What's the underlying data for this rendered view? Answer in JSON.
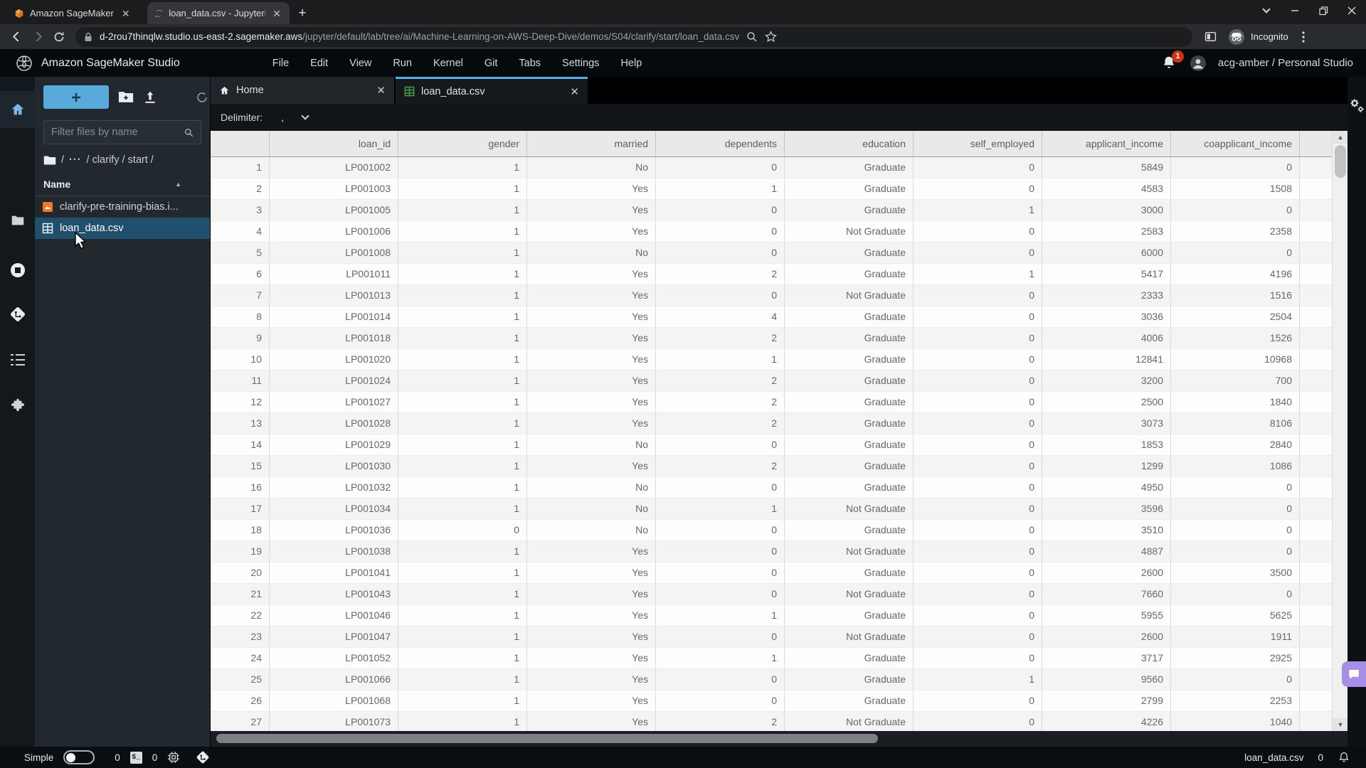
{
  "browser": {
    "tabs": [
      {
        "title": "Amazon SageMaker",
        "icon": "aws-cube-icon"
      },
      {
        "title": "loan_data.csv - JupyterLab",
        "icon": "jupyter-icon"
      }
    ],
    "url_domain": "d-2rou7thinqlw.studio.us-east-2.sagemaker.aws",
    "url_path": "/jupyter/default/lab/tree/ai/Machine-Learning-on-AWS-Deep-Dive/demos/S04/clarify/start/loan_data.csv",
    "incognito_label": "Incognito"
  },
  "studio_header": {
    "title": "Amazon SageMaker Studio",
    "menus": [
      "File",
      "Edit",
      "View",
      "Run",
      "Kernel",
      "Git",
      "Tabs",
      "Settings",
      "Help"
    ],
    "notification_count": "1",
    "user_label": "acg-amber / Personal Studio"
  },
  "file_browser": {
    "filter_placeholder": "Filter files by name",
    "breadcrumb_root": "/",
    "breadcrumb_ellipsis": "···",
    "breadcrumb_rest": "/ clarify / start /",
    "name_header": "Name",
    "files": [
      {
        "name": "clarify-pre-training-bias.i...",
        "type": "notebook",
        "selected": false
      },
      {
        "name": "loan_data.csv",
        "type": "csv",
        "selected": true
      }
    ]
  },
  "main": {
    "tabs": [
      {
        "label": "Home",
        "active": false
      },
      {
        "label": "loan_data.csv",
        "active": true
      }
    ],
    "delimiter_label": "Delimiter:",
    "delimiter_value": ","
  },
  "table": {
    "columns": [
      "loan_id",
      "gender",
      "married",
      "dependents",
      "education",
      "self_employed",
      "applicant_income",
      "coapplicant_income"
    ],
    "partial_last_row": true,
    "rows": [
      [
        "1",
        "LP001002",
        "1",
        "No",
        "0",
        "Graduate",
        "0",
        "5849",
        "0"
      ],
      [
        "2",
        "LP001003",
        "1",
        "Yes",
        "1",
        "Graduate",
        "0",
        "4583",
        "1508"
      ],
      [
        "3",
        "LP001005",
        "1",
        "Yes",
        "0",
        "Graduate",
        "1",
        "3000",
        "0"
      ],
      [
        "4",
        "LP001006",
        "1",
        "Yes",
        "0",
        "Not Graduate",
        "0",
        "2583",
        "2358"
      ],
      [
        "5",
        "LP001008",
        "1",
        "No",
        "0",
        "Graduate",
        "0",
        "6000",
        "0"
      ],
      [
        "6",
        "LP001011",
        "1",
        "Yes",
        "2",
        "Graduate",
        "1",
        "5417",
        "4196"
      ],
      [
        "7",
        "LP001013",
        "1",
        "Yes",
        "0",
        "Not Graduate",
        "0",
        "2333",
        "1516"
      ],
      [
        "8",
        "LP001014",
        "1",
        "Yes",
        "4",
        "Graduate",
        "0",
        "3036",
        "2504"
      ],
      [
        "9",
        "LP001018",
        "1",
        "Yes",
        "2",
        "Graduate",
        "0",
        "4006",
        "1526"
      ],
      [
        "10",
        "LP001020",
        "1",
        "Yes",
        "1",
        "Graduate",
        "0",
        "12841",
        "10968"
      ],
      [
        "11",
        "LP001024",
        "1",
        "Yes",
        "2",
        "Graduate",
        "0",
        "3200",
        "700"
      ],
      [
        "12",
        "LP001027",
        "1",
        "Yes",
        "2",
        "Graduate",
        "0",
        "2500",
        "1840"
      ],
      [
        "13",
        "LP001028",
        "1",
        "Yes",
        "2",
        "Graduate",
        "0",
        "3073",
        "8106"
      ],
      [
        "14",
        "LP001029",
        "1",
        "No",
        "0",
        "Graduate",
        "0",
        "1853",
        "2840"
      ],
      [
        "15",
        "LP001030",
        "1",
        "Yes",
        "2",
        "Graduate",
        "0",
        "1299",
        "1086"
      ],
      [
        "16",
        "LP001032",
        "1",
        "No",
        "0",
        "Graduate",
        "0",
        "4950",
        "0"
      ],
      [
        "17",
        "LP001034",
        "1",
        "No",
        "1",
        "Not Graduate",
        "0",
        "3596",
        "0"
      ],
      [
        "18",
        "LP001036",
        "0",
        "No",
        "0",
        "Graduate",
        "0",
        "3510",
        "0"
      ],
      [
        "19",
        "LP001038",
        "1",
        "Yes",
        "0",
        "Not Graduate",
        "0",
        "4887",
        "0"
      ],
      [
        "20",
        "LP001041",
        "1",
        "Yes",
        "0",
        "Graduate",
        "0",
        "2600",
        "3500"
      ],
      [
        "21",
        "LP001043",
        "1",
        "Yes",
        "0",
        "Not Graduate",
        "0",
        "7660",
        "0"
      ],
      [
        "22",
        "LP001046",
        "1",
        "Yes",
        "1",
        "Graduate",
        "0",
        "5955",
        "5625"
      ],
      [
        "23",
        "LP001047",
        "1",
        "Yes",
        "0",
        "Not Graduate",
        "0",
        "2600",
        "1911"
      ],
      [
        "24",
        "LP001052",
        "1",
        "Yes",
        "1",
        "Graduate",
        "0",
        "3717",
        "2925"
      ],
      [
        "25",
        "LP001066",
        "1",
        "Yes",
        "0",
        "Graduate",
        "1",
        "9560",
        "0"
      ],
      [
        "26",
        "LP001068",
        "1",
        "Yes",
        "0",
        "Graduate",
        "0",
        "2799",
        "2253"
      ],
      [
        "27",
        "LP001073",
        "1",
        "Yes",
        "2",
        "Not Graduate",
        "0",
        "4226",
        "1040"
      ]
    ]
  },
  "status_bar": {
    "mode_label": "Simple",
    "terminal_count": "0",
    "kernel_count": "0",
    "right_file": "loan_data.csv",
    "right_count": "0"
  },
  "icons": {
    "colors": {
      "accent_blue": "#4fb1e8",
      "plus_button": "#57aad9",
      "selection": "#21506f",
      "badge_red": "#d13212",
      "aws_orange": "#e8882d",
      "csv_green": "#43a047",
      "notebook_orange": "#f37726",
      "chat_purple": "#a78fe8"
    }
  }
}
